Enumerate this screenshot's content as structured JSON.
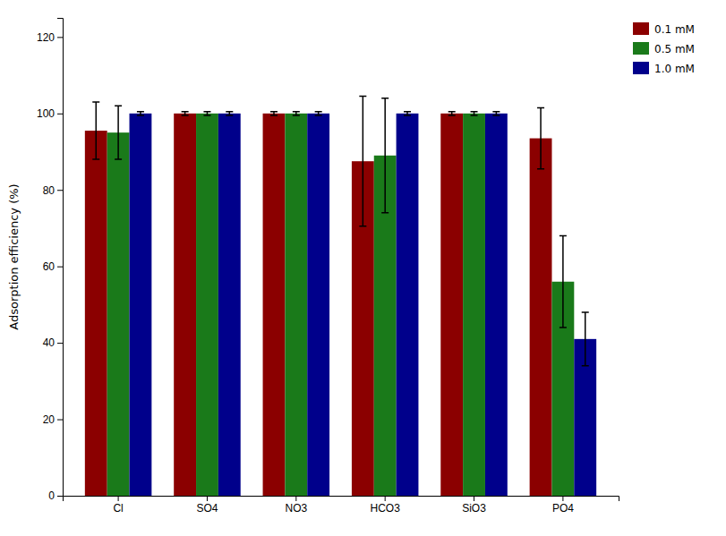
{
  "chart_data": {
    "type": "bar",
    "categories": [
      "Cl",
      "SO4",
      "NO3",
      "HCO3",
      "SiO3",
      "PO4"
    ],
    "series": [
      {
        "name": "0.1 mM",
        "color": "#8B0000",
        "values": [
          95.5,
          100,
          100,
          87.5,
          100,
          93.5
        ],
        "errors": [
          7.5,
          0.5,
          0.5,
          17,
          0.5,
          8
        ]
      },
      {
        "name": "0.5 mM",
        "color": "#1a7a1a",
        "values": [
          95,
          100,
          100,
          89,
          100,
          56
        ],
        "errors": [
          7,
          0.5,
          0.5,
          15,
          0.5,
          12
        ]
      },
      {
        "name": "1.0 mM",
        "color": "#00008B",
        "values": [
          100,
          100,
          100,
          100,
          100,
          41
        ],
        "errors": [
          0.5,
          0.5,
          0.5,
          0.5,
          0.5,
          7
        ]
      }
    ],
    "ylabel": "Adsorption efficiency (%)",
    "ylim": [
      0,
      125
    ],
    "yticks": [
      0,
      20,
      40,
      60,
      80,
      100,
      120
    ],
    "grid": false,
    "legend": "upper right"
  }
}
